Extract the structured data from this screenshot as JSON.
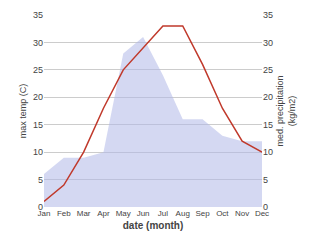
{
  "chart_data": {
    "type": "line",
    "categories": [
      "Jan",
      "Feb",
      "Mar",
      "Apr",
      "May",
      "Jun",
      "Jul",
      "Aug",
      "Sep",
      "Oct",
      "Nov",
      "Dec"
    ],
    "series": [
      {
        "type": "area",
        "color": "#b0b8e8",
        "values": [
          6,
          9,
          9,
          10,
          28,
          31,
          24,
          16,
          16,
          13,
          12,
          12
        ]
      },
      {
        "type": "line",
        "color": "#c0392b",
        "values": [
          1,
          4,
          10,
          18,
          25,
          29,
          33,
          33,
          26,
          18,
          12,
          10
        ]
      }
    ],
    "xlabel": "date (month)",
    "ylabel": "max temp (C)",
    "y2label": "med. precipitation\n(kg/m2)",
    "ylim": [
      0,
      35
    ],
    "yticks": [
      0,
      5,
      10,
      15,
      20,
      25,
      30,
      35
    ],
    "y2lim": [
      0,
      35
    ],
    "y2ticks": [
      0,
      5,
      10,
      15,
      20,
      25,
      30,
      35
    ],
    "grid": true
  }
}
